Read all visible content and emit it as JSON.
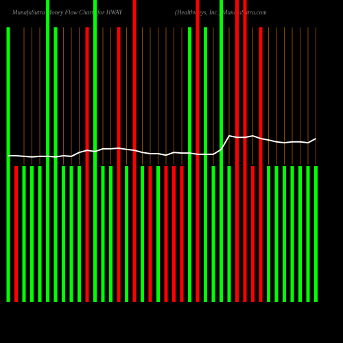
{
  "chart_data": {
    "type": "bar",
    "title": "MunafaSutra Money Flow Charts for HWAY",
    "subtitle": "(Healthways, Inc.) MunafaSutra.com",
    "ylim": [
      0,
      100
    ],
    "background": "#000000",
    "series": [
      {
        "type": "bar",
        "values": [
          91,
          45,
          45,
          45,
          45,
          100,
          91,
          45,
          45,
          45,
          91,
          100,
          45,
          45,
          91,
          45,
          100,
          45,
          45,
          45,
          45,
          45,
          45,
          91,
          100,
          91,
          45,
          100,
          45,
          100,
          100,
          45,
          91,
          45,
          45,
          45,
          45,
          45,
          45,
          45
        ],
        "colors": [
          "#00ff00",
          "#ff0000",
          "#00ff00",
          "#00ff00",
          "#00ff00",
          "#00ff00",
          "#00ff00",
          "#00ff00",
          "#00ff00",
          "#00ff00",
          "#ff0000",
          "#00ff00",
          "#00ff00",
          "#00ff00",
          "#ff0000",
          "#00ff00",
          "#ff0000",
          "#00ff00",
          "#ff0000",
          "#00ff00",
          "#ff0000",
          "#ff0000",
          "#ff0000",
          "#00ff00",
          "#ff0000",
          "#00ff00",
          "#00ff00",
          "#00ff00",
          "#00ff00",
          "#ff0000",
          "#ff0000",
          "#ff0000",
          "#ff0000",
          "#00ff00",
          "#00ff00",
          "#00ff00",
          "#00ff00",
          "#00ff00",
          "#00ff00",
          "#00ff00"
        ]
      },
      {
        "type": "line",
        "color": "#ffffff",
        "values": [
          48.4,
          48.4,
          48.2,
          48.0,
          48.2,
          48.2,
          48.0,
          48.4,
          48.2,
          49.5,
          50.2,
          49.8,
          50.7,
          50.7,
          50.9,
          50.5,
          50.2,
          49.5,
          49.1,
          49.1,
          48.6,
          49.5,
          49.3,
          49.3,
          48.9,
          48.9,
          48.9,
          50.5,
          55.0,
          54.5,
          54.5,
          55.0,
          54.1,
          53.6,
          53.0,
          52.7,
          53.0,
          53.0,
          52.7,
          54.1
        ]
      }
    ]
  }
}
